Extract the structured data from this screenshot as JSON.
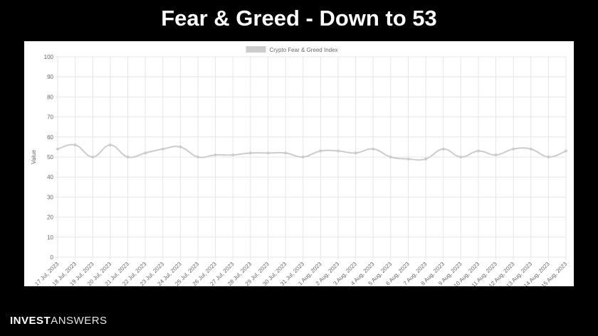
{
  "slide": {
    "title": "Fear & Greed - Down to 53"
  },
  "brand": {
    "part1": "INVEST",
    "part2": "ANSWERS"
  },
  "colors": {
    "background": "#000000",
    "panel": "#ffffff",
    "series": "#cccccc",
    "grid": "#e6e6e6",
    "tick_text": "#666666"
  },
  "chart_data": {
    "type": "line",
    "title": "",
    "xlabel": "",
    "ylabel": "Value",
    "ylim": [
      0,
      100
    ],
    "yticks": [
      0,
      10,
      20,
      30,
      40,
      50,
      60,
      70,
      80,
      90,
      100
    ],
    "grid": true,
    "legend_position": "top-center",
    "categories": [
      "17 Jul, 2023",
      "18 Jul, 2023",
      "19 Jul, 2023",
      "20 Jul, 2023",
      "21 Jul, 2023",
      "22 Jul, 2023",
      "23 Jul, 2023",
      "24 Jul, 2023",
      "25 Jul, 2023",
      "26 Jul, 2023",
      "27 Jul, 2023",
      "28 Jul, 2023",
      "29 Jul, 2023",
      "30 Jul, 2023",
      "31 Jul, 2023",
      "1 Aug, 2023",
      "2 Aug, 2023",
      "3 Aug, 2023",
      "4 Aug, 2023",
      "5 Aug, 2023",
      "6 Aug, 2023",
      "7 Aug, 2023",
      "8 Aug, 2023",
      "9 Aug, 2023",
      "10 Aug, 2023",
      "11 Aug, 2023",
      "12 Aug, 2023",
      "13 Aug, 2023",
      "14 Aug, 2023",
      "15 Aug, 2023"
    ],
    "series": [
      {
        "name": "Crypto Fear & Greed Index",
        "color": "#cccccc",
        "values": [
          54,
          56,
          50,
          56,
          50,
          52,
          54,
          55,
          50,
          51,
          51,
          52,
          52,
          52,
          50,
          53,
          53,
          52,
          54,
          50,
          49,
          49,
          54,
          50,
          53,
          51,
          54,
          54,
          50,
          53
        ]
      }
    ]
  }
}
